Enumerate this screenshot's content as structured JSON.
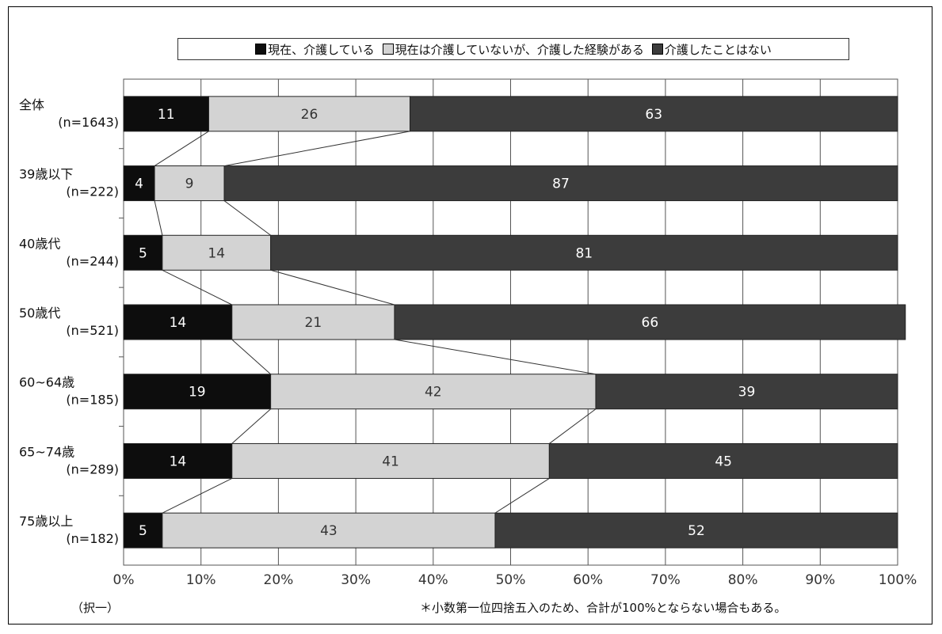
{
  "colors": {
    "caring_now": "#0d0d0d",
    "cared_before": "#d3d3d3",
    "never_cared": "#3c3c3c",
    "gridline": "#555555",
    "frame": "#000000"
  },
  "chart_data": {
    "type": "bar",
    "orientation": "horizontal",
    "stacked": true,
    "categories": [
      [
        "全体",
        "(n=1643)"
      ],
      [
        "39歳以下",
        "(n=222)"
      ],
      [
        "40歳代",
        "(n=244)"
      ],
      [
        "50歳代",
        "(n=521)"
      ],
      [
        "60~64歳",
        "(n=185)"
      ],
      [
        "65~74歳",
        "(n=289)"
      ],
      [
        "75歳以上",
        "(n=182)"
      ]
    ],
    "series": [
      {
        "name": "現在、介護している",
        "values": [
          11,
          4,
          5,
          14,
          19,
          14,
          5
        ],
        "color_key": "caring_now"
      },
      {
        "name": "現在は介護していないが、介護した経験がある",
        "values": [
          26,
          9,
          14,
          21,
          42,
          41,
          43
        ],
        "color_key": "cared_before"
      },
      {
        "name": "介護したことはない",
        "values": [
          63,
          87,
          81,
          66,
          39,
          45,
          52
        ],
        "color_key": "never_cared"
      }
    ],
    "xlim": [
      0,
      100
    ],
    "xticks": [
      "0%",
      "10%",
      "20%",
      "30%",
      "40%",
      "50%",
      "60%",
      "70%",
      "80%",
      "90%",
      "100%"
    ],
    "grid": true,
    "series_connector_lines": true,
    "legend_position": "top"
  },
  "notes": {
    "left": "（択一）",
    "right": "＊小数第一位四捨五入のため、合計が100%とならない場合もある。"
  }
}
